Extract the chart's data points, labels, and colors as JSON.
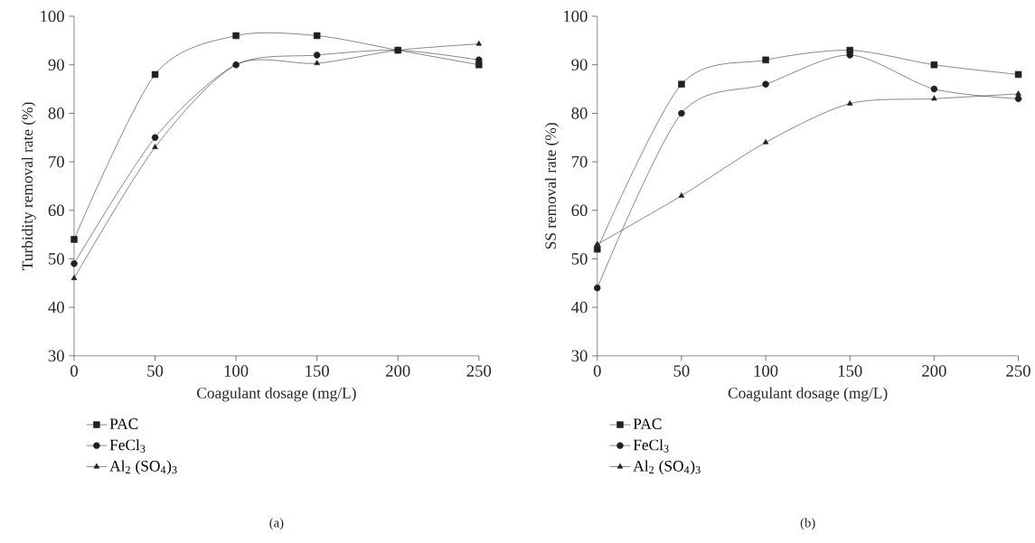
{
  "chart_data": [
    {
      "type": "line",
      "xlabel": "Coagulant dosage (mg/L)",
      "ylabel": "Turbidity removal rate (%)",
      "x": [
        0,
        50,
        100,
        150,
        200,
        250
      ],
      "xlim": [
        0,
        250
      ],
      "ylim": [
        30,
        100
      ],
      "xticks": [
        0,
        50,
        100,
        150,
        200,
        250
      ],
      "yticks": [
        30,
        40,
        50,
        60,
        70,
        80,
        90,
        100
      ],
      "grid": false,
      "legend": "bottom left",
      "annotations": [
        "(a)"
      ],
      "series": [
        {
          "name": "PAC",
          "color": "#231f20",
          "marker": "square",
          "values": [
            54,
            88,
            96,
            96,
            93,
            90
          ]
        },
        {
          "name": "FeCl$_{3}$",
          "color": "#231f20",
          "marker": "circle",
          "values": [
            49,
            75,
            90,
            92,
            93,
            91
          ]
        },
        {
          "name": "Al$_{2}$ (SO$_{4}$)$_{3}$",
          "color": "#231f20",
          "marker": "triangle",
          "values": [
            46,
            73,
            90,
            90.3,
            93,
            94.3
          ]
        }
      ]
    },
    {
      "type": "line",
      "xlabel": "Coagulant dosage (mg/L)",
      "ylabel": "SS removal rate (%)",
      "x": [
        0,
        50,
        100,
        150,
        200,
        250
      ],
      "xlim": [
        0,
        250
      ],
      "ylim": [
        30,
        100
      ],
      "xticks": [
        0,
        50,
        100,
        150,
        200,
        250
      ],
      "yticks": [
        30,
        40,
        50,
        60,
        70,
        80,
        90,
        100
      ],
      "grid": false,
      "legend": "bottom left",
      "annotations": [
        "(b)"
      ],
      "series": [
        {
          "name": "PAC",
          "color": "#231f20",
          "marker": "square",
          "values": [
            52,
            86,
            91,
            93,
            90,
            88
          ]
        },
        {
          "name": "FeCl$_{3}$",
          "color": "#231f20",
          "marker": "circle",
          "values": [
            44,
            80,
            86,
            92,
            85,
            83
          ]
        },
        {
          "name": "Al$_{2}$ (SO$_{4}$)$_{3}$",
          "color": "#231f20",
          "marker": "triangle",
          "values": [
            53,
            63,
            74,
            82,
            83,
            84
          ]
        }
      ]
    }
  ]
}
